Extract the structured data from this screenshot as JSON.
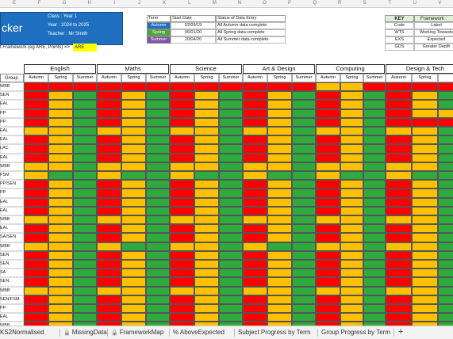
{
  "column_letters": [
    "E",
    "F",
    "G",
    "H",
    "I",
    "J",
    "K",
    "L",
    "M",
    "N",
    "O",
    "P",
    "Q",
    "R",
    "S",
    "T",
    "U",
    "V"
  ],
  "title_box": {
    "title": "cker",
    "class_line": "Class : Year 1",
    "year_line": "Year : 2024 to 2025",
    "teacher_line": "Teacher : Mr Smith"
  },
  "framework_prompt": {
    "label": "t Framework (eg ARE, Points) =>",
    "value": "ARE"
  },
  "term_table": {
    "headers": [
      "Term",
      "Start Date",
      "Status of Data Entry"
    ],
    "rows": [
      {
        "term": "Autumn",
        "start": "02/09/19",
        "status": "All Autumn data complete",
        "color": "#1f6fc1"
      },
      {
        "term": "Spring",
        "start": "06/01/20",
        "status": "All Spring data complete",
        "color": "#4aa83a"
      },
      {
        "term": "Summer",
        "start": "20/04/20",
        "status": "All Summer data complete",
        "color": "#7b52a8"
      }
    ]
  },
  "key_table": {
    "header_key": "KEY",
    "header_framework": "Framework :",
    "rows": [
      {
        "code": "Code",
        "label": "Label"
      },
      {
        "code": "WTS",
        "label": "Working Towards"
      },
      {
        "code": "EXS",
        "label": "Expected"
      },
      {
        "code": "GDS",
        "label": "Greater Depth"
      }
    ]
  },
  "colors": {
    "red": "#ff0000",
    "amber": "#ffc000",
    "green": "#2eaa3f",
    "title_blue": "#1f6fc1",
    "highlight": "#ffff00"
  },
  "group_header": "Group",
  "subjects": [
    "English",
    "Maths",
    "Science",
    "Art & Design",
    "Computing",
    "Design & Tech"
  ],
  "terms": [
    "Autumn",
    "Spring",
    "Summer"
  ],
  "last_subject_terms": [
    "Autumn",
    "Spring"
  ],
  "groups": [
    "WBB",
    "SEN",
    "EAL",
    "PP",
    "PP",
    "EAL",
    "EAL",
    "LAC",
    "EAL",
    "WBB",
    "FSM",
    "PP/SEN",
    "PP",
    "EAL",
    "EAL",
    "WBB",
    "EAL",
    "SA/SEN",
    "WBB",
    "SEN",
    "SEN",
    "SA",
    "SEN",
    "WBB",
    "SEN/FSM",
    "PP",
    "EAL",
    "WBB",
    "WBB"
  ],
  "grid_rows": [
    "RRRRRRRRRRRRAARRRRR",
    "RAGRAGRAGRAGRAGRAGA",
    "RAGRAGRAGRAGRAGRAGA",
    "RAGRAGRAGRAGRAGRAAR",
    "RAGRAGRAGRAGRAGRRRA",
    "AAGAAGAAGAAGAAGAAGA",
    "RAGRAGRAGRAGRAGRAGA",
    "RAGRAGRAGRAGRAGRAGA",
    "RAGRAGRAGRAGRAGRAGA",
    "AAGAAGAAGAAGAAGAAGA",
    "AGGAGGAGGAGGAGGAGGA",
    "RAGRAGRAGRAGRAGRAGA",
    "RAGRAGRAGRAGRAGRAGA",
    "RAGRAGRAGRAGRAGRAGA",
    "RAGRAGRAGRAGRAGRAGA",
    "AAGAAGAAGAAGAAGAAGA",
    "RAGRAGRAGRAGRAGRAGA",
    "RAGRAGRAGRAGRAGRAGA",
    "AAGAGGAAGAGGAAGAAGA",
    "RAGRAGRAGRAGRAGRAGA",
    "RAGRAGRAGRAGRAGRAGA",
    "RAGRAGRAGRAGRAGRAGA",
    "RAGRAGRAGRAGRAGRAGA",
    "AAGAAGAAGAAGAAGAAGA",
    "RAGRAGRAGRAGRAGRAGA",
    "RAGRAGRAGRAGRAGRAGA",
    "RAGRAGRAGRAGRAGRAGA",
    "RAGRAGRAGRAGRAGRAGA",
    "RAGRAGRAGRAGRAGRAGA"
  ],
  "sheet_tabs": [
    {
      "label": "KS2Normalised",
      "locked": false,
      "active": false
    },
    {
      "label": "MissingData",
      "locked": true,
      "active": false
    },
    {
      "label": "FrameworkMap",
      "locked": true,
      "active": false
    },
    {
      "label": "% AboveExpected",
      "locked": false,
      "active": false
    },
    {
      "label": "Subject Progress by Term",
      "locked": false,
      "active": false
    },
    {
      "label": "Group Progress by Term",
      "locked": false,
      "active": false
    }
  ],
  "add_tab_label": "+"
}
